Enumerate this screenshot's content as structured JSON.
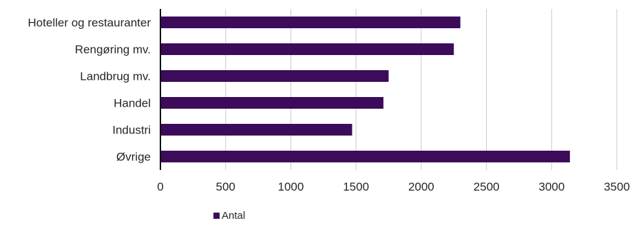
{
  "chart_data": {
    "type": "bar",
    "orientation": "horizontal",
    "categories": [
      "Hoteller og restauranter",
      "Rengøring mv.",
      "Landbrug mv.",
      "Handel",
      "Industri",
      "Øvrige"
    ],
    "series": [
      {
        "name": "Antal",
        "values": [
          2300,
          2250,
          1750,
          1710,
          1470,
          3140
        ]
      }
    ],
    "xticks": [
      0,
      500,
      1000,
      1500,
      2000,
      2500,
      3000,
      3500
    ],
    "xlim": [
      0,
      3500
    ],
    "grid": "vertical",
    "legend": "bottom-left",
    "colors": {
      "bar": "#3c0b5a",
      "gridline": "#c8c8c8",
      "axis": "#000000",
      "text": "#262626"
    }
  }
}
